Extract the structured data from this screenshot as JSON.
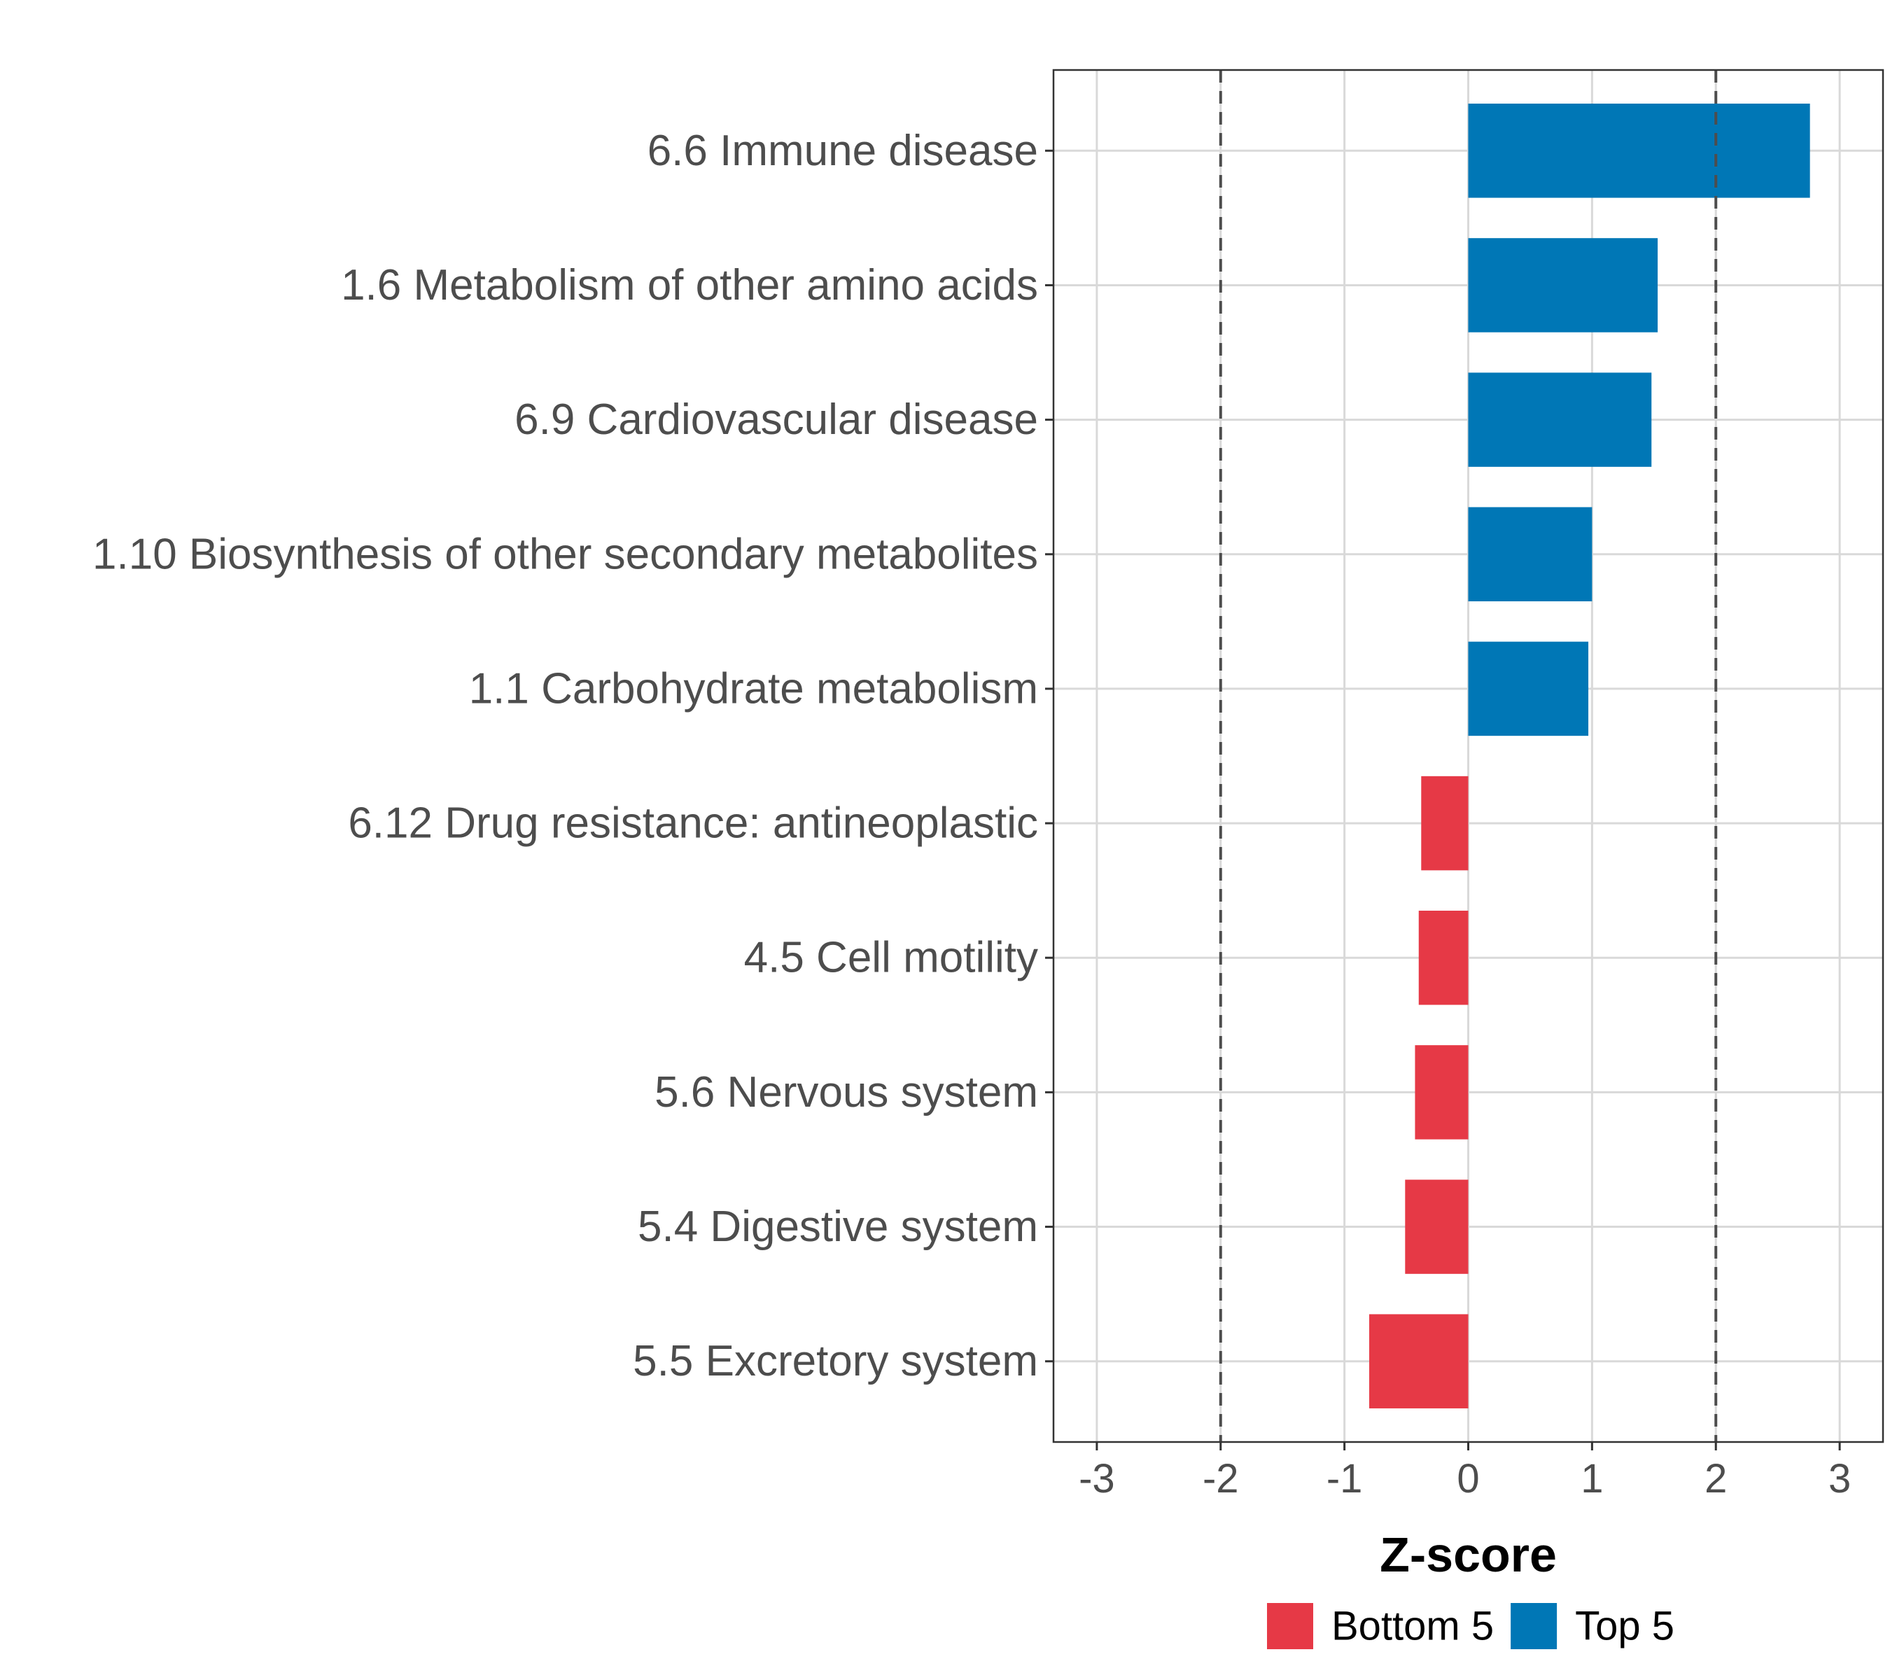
{
  "chart_data": {
    "type": "bar",
    "orientation": "horizontal",
    "title": "",
    "xlabel": "Z-score",
    "ylabel": "",
    "xlim": [
      -3.35,
      3.35
    ],
    "x_ticks": [
      -3,
      -2,
      -1,
      0,
      1,
      2,
      3
    ],
    "x_tick_labels": [
      "-3",
      "-2",
      "-1",
      "0",
      "1",
      "2",
      "3"
    ],
    "reference_lines": [
      -2,
      2
    ],
    "grid": true,
    "legend_position": "bottom",
    "categories": [
      "6.6 Immune disease",
      "1.6 Metabolism of other amino acids",
      "6.9 Cardiovascular disease",
      "1.10 Biosynthesis of other secondary metabolites",
      "1.1 Carbohydrate metabolism",
      "6.12 Drug resistance: antineoplastic",
      "4.5 Cell motility",
      "5.6 Nervous system",
      "5.4 Digestive system",
      "5.5 Excretory system"
    ],
    "values": [
      2.76,
      1.53,
      1.48,
      1.0,
      0.97,
      -0.38,
      -0.4,
      -0.43,
      -0.51,
      -0.8
    ],
    "groups": [
      "Top 5",
      "Top 5",
      "Top 5",
      "Top 5",
      "Top 5",
      "Bottom 5",
      "Bottom 5",
      "Bottom 5",
      "Bottom 5",
      "Bottom 5"
    ],
    "legend": [
      {
        "name": "Bottom 5",
        "color": "#e63946"
      },
      {
        "name": "Top 5",
        "color": "#0077b6"
      }
    ]
  }
}
